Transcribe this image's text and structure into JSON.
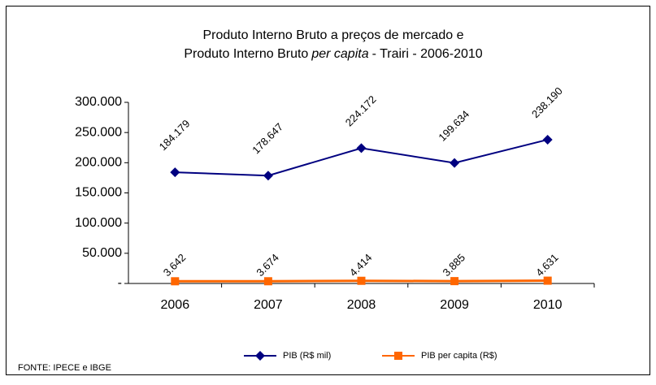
{
  "chart_data": {
    "type": "line",
    "title": {
      "line1": "Produto Interno  Bruto a preços de mercado  e",
      "line2": [
        "Produto Interno Bruto",
        "per capita",
        "- Trairi - 2006-2010"
      ]
    },
    "categories": [
      "2006",
      "2007",
      "2008",
      "2009",
      "2010"
    ],
    "series": [
      {
        "name": "PIB (R$ mil)",
        "color": "#000080",
        "marker": "diamond",
        "values": [
          184179,
          178647,
          224172,
          199634,
          238190
        ],
        "value_labels": [
          "184.179",
          "178.647",
          "224.172",
          "199.634",
          "238.190"
        ]
      },
      {
        "name": "PIB per capita (R$)",
        "color": "#ff6600",
        "marker": "square",
        "values": [
          3642,
          3674,
          4414,
          3885,
          4631
        ],
        "value_labels": [
          "3.642",
          "3.674",
          "4.414",
          "3.885",
          "4.631"
        ]
      }
    ],
    "ylim": [
      0,
      300000
    ],
    "yticks": [
      {
        "value": 0,
        "label": "-"
      },
      {
        "value": 50000,
        "label": "50.000"
      },
      {
        "value": 100000,
        "label": "100.000"
      },
      {
        "value": 150000,
        "label": "150.000"
      },
      {
        "value": 200000,
        "label": "200.000"
      },
      {
        "value": 250000,
        "label": "250.000"
      },
      {
        "value": 300000,
        "label": "300.000"
      }
    ],
    "grid": false,
    "legend": "bottom",
    "source": "FONTE: IPECE e IBGE"
  }
}
